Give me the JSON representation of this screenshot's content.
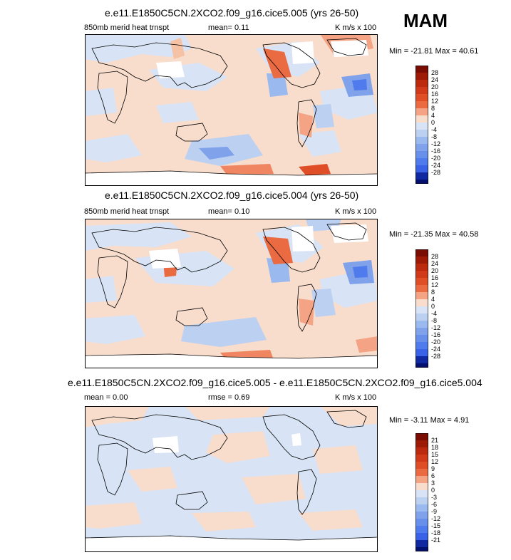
{
  "season": "MAM",
  "palette": {
    "positive": [
      "#f8dccc",
      "#f6c2a6",
      "#f4a484",
      "#ef8661",
      "#ea6a42",
      "#e04e28",
      "#d03a1a",
      "#bb2a0e",
      "#9c1a06",
      "#7a0c02"
    ],
    "negative": [
      "#d8e4f6",
      "#bcd0f2",
      "#9ab9ee",
      "#7fa2ea",
      "#6890ea",
      "#4f7bec",
      "#3a62e6",
      "#2446cc",
      "#1129a0",
      "#03106e"
    ],
    "zero": "#ffffff",
    "coast": "#000000",
    "outline": "#000000"
  },
  "panels": [
    {
      "title": "e.e11.E1850C5CN.2XCO2.f09_g16.cice5.005 (yrs 26-50)",
      "left_label": "850mb merid heat trnspt",
      "mid_label": "mean=  0.11",
      "right_label": "K m/s x 100",
      "min_max": "Min = -21.81 Max =  40.61",
      "colorbar": [
        "28",
        "24",
        "20",
        "16",
        "12",
        "8",
        "4",
        "0",
        "-4",
        "-8",
        "-12",
        "-16",
        "-20",
        "-24",
        "-28"
      ]
    },
    {
      "title": "e.e11.E1850C5CN.2XCO2.f09_g16.cice5.004 (yrs 26-50)",
      "left_label": "850mb merid heat trnspt",
      "mid_label": "mean=  0.10",
      "right_label": "K m/s x 100",
      "min_max": "Min = -21.35 Max =  40.58",
      "colorbar": [
        "28",
        "24",
        "20",
        "16",
        "12",
        "8",
        "4",
        "0",
        "-4",
        "-8",
        "-12",
        "-16",
        "-20",
        "-24",
        "-28"
      ]
    },
    {
      "title": "e.e11.E1850C5CN.2XCO2.f09_g16.cice5.005 - e.e11.E1850C5CN.2XCO2.f09_g16.cice5.004",
      "left_label": "mean =  0.00",
      "mid_label": "rmse =  0.69",
      "right_label": "K m/s x 100",
      "min_max": "Min =  -3.11 Max =  4.91",
      "colorbar": [
        "21",
        "18",
        "15",
        "12",
        "9",
        "6",
        "3",
        "0",
        "-3",
        "-6",
        "-9",
        "-12",
        "-15",
        "-18",
        "-21"
      ]
    }
  ],
  "chart_data": [
    {
      "type": "heatmap",
      "title": "e.e11.E1850C5CN.2XCO2.f09_g16.cice5.005 (yrs 26-50)",
      "variable": "850mb merid heat trnspt",
      "units": "K m/s x 100",
      "mean": 0.11,
      "min": -21.81,
      "max": 40.61,
      "levels": [
        -28,
        -24,
        -20,
        -16,
        -12,
        -8,
        -4,
        0,
        4,
        8,
        12,
        16,
        20,
        24,
        28
      ]
    },
    {
      "type": "heatmap",
      "title": "e.e11.E1850C5CN.2XCO2.f09_g16.cice5.004 (yrs 26-50)",
      "variable": "850mb merid heat trnspt",
      "units": "K m/s x 100",
      "mean": 0.1,
      "min": -21.35,
      "max": 40.58,
      "levels": [
        -28,
        -24,
        -20,
        -16,
        -12,
        -8,
        -4,
        0,
        4,
        8,
        12,
        16,
        20,
        24,
        28
      ]
    },
    {
      "type": "heatmap",
      "title": "e.e11.E1850C5CN.2XCO2.f09_g16.cice5.005 - e.e11.E1850C5CN.2XCO2.f09_g16.cice5.004",
      "units": "K m/s x 100",
      "mean": 0.0,
      "rmse": 0.69,
      "min": -3.11,
      "max": 4.91,
      "levels": [
        -21,
        -18,
        -15,
        -12,
        -9,
        -6,
        -3,
        0,
        3,
        6,
        9,
        12,
        15,
        18,
        21
      ]
    }
  ]
}
